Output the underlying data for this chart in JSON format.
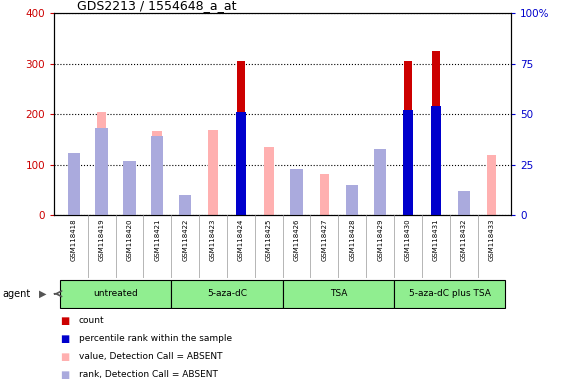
{
  "title": "GDS2213 / 1554648_a_at",
  "samples": [
    "GSM118418",
    "GSM118419",
    "GSM118420",
    "GSM118421",
    "GSM118422",
    "GSM118423",
    "GSM118424",
    "GSM118425",
    "GSM118426",
    "GSM118427",
    "GSM118428",
    "GSM118429",
    "GSM118430",
    "GSM118431",
    "GSM118432",
    "GSM118433"
  ],
  "groups": [
    {
      "label": "untreated",
      "indices": [
        0,
        1,
        2,
        3
      ],
      "color": "#90ee90"
    },
    {
      "label": "5-aza-dC",
      "indices": [
        4,
        5,
        6,
        7
      ],
      "color": "#90ee90"
    },
    {
      "label": "TSA",
      "indices": [
        8,
        9,
        10,
        11
      ],
      "color": "#90ee90"
    },
    {
      "label": "5-aza-dC plus TSA",
      "indices": [
        12,
        13,
        14,
        15
      ],
      "color": "#90ee90"
    }
  ],
  "count_values": [
    null,
    null,
    null,
    null,
    null,
    null,
    305,
    null,
    null,
    null,
    null,
    null,
    305,
    325,
    null,
    null
  ],
  "rank_pct": [
    null,
    null,
    null,
    null,
    null,
    null,
    51,
    null,
    null,
    null,
    null,
    null,
    52,
    54,
    null,
    null
  ],
  "value_absent": [
    120,
    205,
    82,
    167,
    17,
    168,
    null,
    135,
    55,
    82,
    50,
    120,
    null,
    null,
    28,
    120
  ],
  "rank_absent_pct": [
    31,
    43,
    27,
    39,
    10,
    null,
    null,
    null,
    23,
    null,
    15,
    33,
    null,
    null,
    12,
    null
  ],
  "ylim": [
    0,
    400
  ],
  "right_ylim": [
    0,
    100
  ],
  "yticks_left": [
    0,
    100,
    200,
    300,
    400
  ],
  "yticks_right": [
    0,
    25,
    50,
    75,
    100
  ],
  "right_tick_labels": [
    "0",
    "25",
    "50",
    "75",
    "100%"
  ],
  "ylabel_left_color": "#cc0000",
  "ylabel_right_color": "#0000cc",
  "count_color": "#cc0000",
  "rank_color": "#0000cc",
  "value_absent_color": "#ffb0b0",
  "rank_absent_color": "#aaaadd",
  "background_color": "#ffffff",
  "grid_color": "#000000",
  "legend_items": [
    {
      "label": "count",
      "color": "#cc0000"
    },
    {
      "label": "percentile rank within the sample",
      "color": "#0000cc"
    },
    {
      "label": "value, Detection Call = ABSENT",
      "color": "#ffb0b0"
    },
    {
      "label": "rank, Detection Call = ABSENT",
      "color": "#aaaadd"
    }
  ]
}
